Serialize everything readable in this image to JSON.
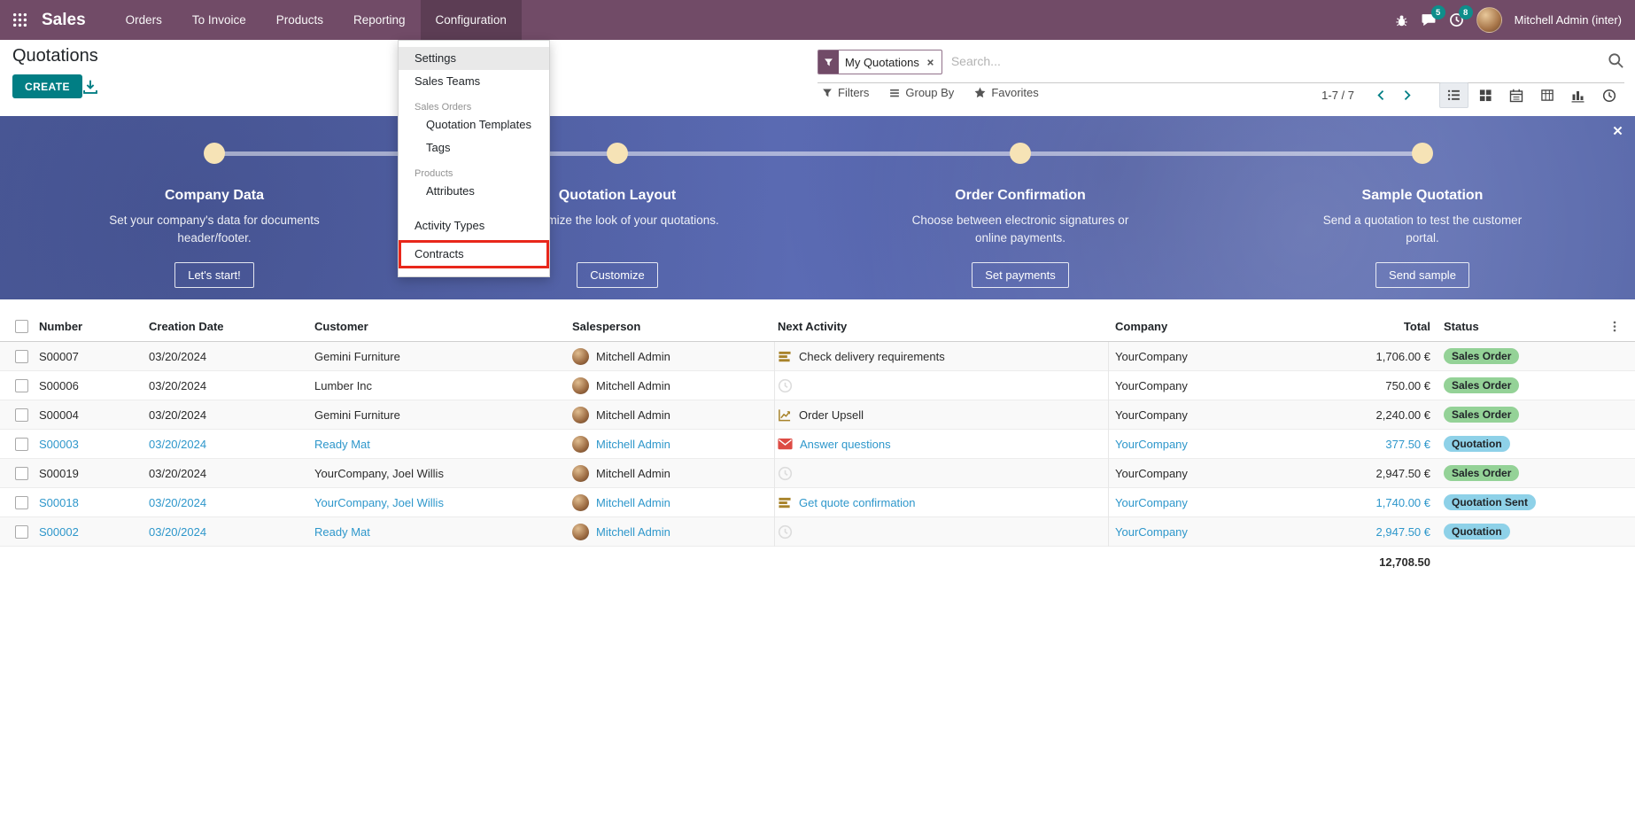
{
  "colors": {
    "navbar_bg": "#714B67",
    "accent_teal": "#017E84",
    "banner_bg": "#5A6AB0",
    "link_blue": "#2E97CB",
    "badge_success": "#94D297",
    "badge_info": "#8ED1E8",
    "badge_count": "#0E8E8B",
    "highlight_red": "#E8271B",
    "gold_icon": "#A8832A"
  },
  "navbar": {
    "app_name": "Sales",
    "items": [
      {
        "label": "Orders",
        "active": false
      },
      {
        "label": "To Invoice",
        "active": false
      },
      {
        "label": "Products",
        "active": false
      },
      {
        "label": "Reporting",
        "active": false
      },
      {
        "label": "Configuration",
        "active": true
      }
    ],
    "messages_badge": "5",
    "activities_badge": "8",
    "user_name": "Mitchell Admin (inter)"
  },
  "control_panel": {
    "title": "Quotations",
    "create_label": "CREATE",
    "search": {
      "facet_label": "My Quotations",
      "placeholder": "Search..."
    },
    "filter_buttons": {
      "filters": "Filters",
      "group_by": "Group By",
      "favorites": "Favorites"
    },
    "pager": {
      "range": "1-7 / 7"
    },
    "views": [
      "list",
      "kanban",
      "calendar",
      "pivot",
      "graph",
      "activity"
    ],
    "active_view": "list"
  },
  "config_menu": {
    "items": [
      {
        "label": "Settings",
        "type": "item",
        "hovered": true
      },
      {
        "label": "Sales Teams",
        "type": "item"
      },
      {
        "label": "Sales Orders",
        "type": "section"
      },
      {
        "label": "Quotation Templates",
        "type": "subitem"
      },
      {
        "label": "Tags",
        "type": "subitem"
      },
      {
        "label": "Products",
        "type": "section"
      },
      {
        "label": "Attributes",
        "type": "subitem"
      },
      {
        "label": "Activity Types",
        "type": "item",
        "gap_before": true
      },
      {
        "label": "Contracts",
        "type": "item",
        "highlighted": true
      }
    ]
  },
  "onboarding_banner": {
    "steps": [
      {
        "title": "Company Data",
        "description": "Set your company's data for documents header/footer.",
        "button": "Let's start!"
      },
      {
        "title": "Quotation Layout",
        "description": "Customize the look of your quotations.",
        "button": "Customize"
      },
      {
        "title": "Order Confirmation",
        "description": "Choose between electronic signatures or online payments.",
        "button": "Set payments"
      },
      {
        "title": "Sample Quotation",
        "description": "Send a quotation to test the customer portal.",
        "button": "Send sample"
      }
    ]
  },
  "table": {
    "columns": [
      "Number",
      "Creation Date",
      "Customer",
      "Salesperson",
      "Next Activity",
      "Company",
      "Total",
      "Status"
    ],
    "rows": [
      {
        "number": "S00007",
        "creation_date": "03/20/2024",
        "customer": "Gemini Furniture",
        "salesperson": "Mitchell Admin",
        "activity_icon": "tasks",
        "activity": "Check delivery requirements",
        "company": "YourCompany",
        "total": "1,706.00 €",
        "status": "Sales Order",
        "status_type": "success",
        "highlighted": false
      },
      {
        "number": "S00006",
        "creation_date": "03/20/2024",
        "customer": "Lumber Inc",
        "salesperson": "Mitchell Admin",
        "activity_icon": "clock",
        "activity": "",
        "company": "YourCompany",
        "total": "750.00 €",
        "status": "Sales Order",
        "status_type": "success",
        "highlighted": false
      },
      {
        "number": "S00004",
        "creation_date": "03/20/2024",
        "customer": "Gemini Furniture",
        "salesperson": "Mitchell Admin",
        "activity_icon": "chartline",
        "activity": "Order Upsell",
        "company": "YourCompany",
        "total": "2,240.00 €",
        "status": "Sales Order",
        "status_type": "success",
        "highlighted": false
      },
      {
        "number": "S00003",
        "creation_date": "03/20/2024",
        "customer": "Ready Mat",
        "salesperson": "Mitchell Admin",
        "activity_icon": "envelope",
        "activity": "Answer questions",
        "company": "YourCompany",
        "total": "377.50 €",
        "status": "Quotation",
        "status_type": "info",
        "highlighted": true
      },
      {
        "number": "S00019",
        "creation_date": "03/20/2024",
        "customer": "YourCompany, Joel Willis",
        "salesperson": "Mitchell Admin",
        "activity_icon": "clock",
        "activity": "",
        "company": "YourCompany",
        "total": "2,947.50 €",
        "status": "Sales Order",
        "status_type": "success",
        "highlighted": false
      },
      {
        "number": "S00018",
        "creation_date": "03/20/2024",
        "customer": "YourCompany, Joel Willis",
        "salesperson": "Mitchell Admin",
        "activity_icon": "tasks",
        "activity": "Get quote confirmation",
        "company": "YourCompany",
        "total": "1,740.00 €",
        "status": "Quotation Sent",
        "status_type": "info",
        "highlighted": true
      },
      {
        "number": "S00002",
        "creation_date": "03/20/2024",
        "customer": "Ready Mat",
        "salesperson": "Mitchell Admin",
        "activity_icon": "clock",
        "activity": "",
        "company": "YourCompany",
        "total": "2,947.50 €",
        "status": "Quotation",
        "status_type": "info",
        "highlighted": true
      }
    ],
    "footer_total": "12,708.50"
  }
}
